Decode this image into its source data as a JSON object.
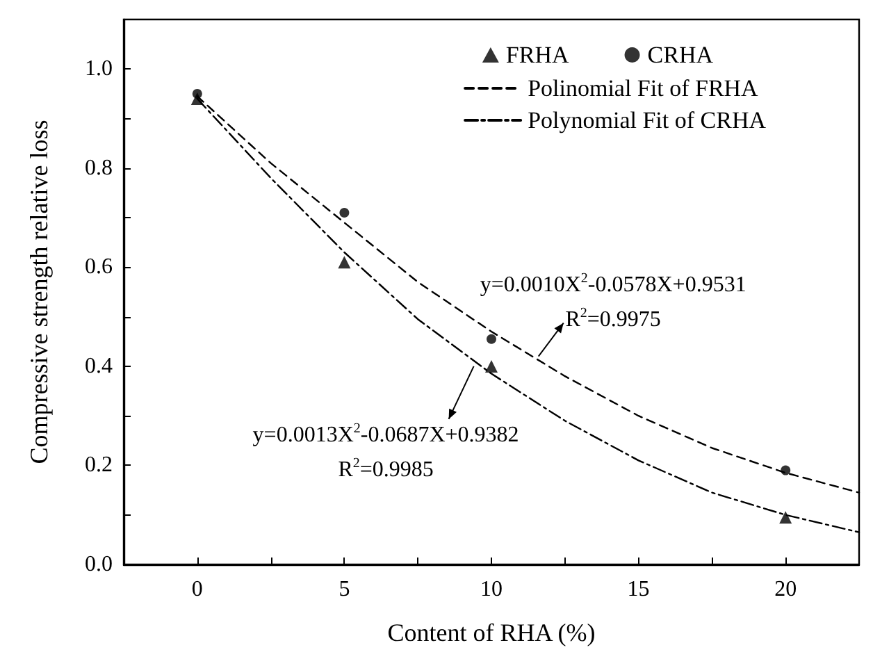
{
  "chart_data": {
    "type": "scatter",
    "xlabel": "Content of RHA (%)",
    "ylabel": "Compressive strength relative loss",
    "xlim": [
      -2.5,
      22.5
    ],
    "xticks": [
      0,
      {
        "value": 2.5,
        "label": null
      },
      5,
      {
        "value": 7.5,
        "label": null
      },
      10,
      {
        "value": 12.5,
        "label": null
      },
      15,
      {
        "value": 17.5,
        "label": null
      },
      20
    ],
    "ylim": [
      0,
      1.1
    ],
    "yticks": [
      {
        "value": 0,
        "label": "0.0"
      },
      {
        "value": 0.1,
        "label": null
      },
      {
        "value": 0.2,
        "label": "0.2"
      },
      {
        "value": 0.3,
        "label": null
      },
      {
        "value": 0.4,
        "label": "0.4"
      },
      {
        "value": 0.5,
        "label": null
      },
      {
        "value": 0.6,
        "label": "0.6"
      },
      {
        "value": 0.7,
        "label": null
      },
      {
        "value": 0.8,
        "label": "0.8"
      },
      {
        "value": 0.9,
        "label": null
      },
      {
        "value": 1.0,
        "label": "1.0"
      }
    ],
    "grid": false,
    "legend": "top right",
    "x": [
      0,
      5,
      10,
      20
    ],
    "series": [
      {
        "name": "FRHA",
        "type": "scatter",
        "marker": "triangle",
        "color": "#000000",
        "values": [
          0.94,
          0.61,
          0.4,
          0.095
        ]
      },
      {
        "name": "CRHA",
        "type": "scatter",
        "marker": "circle",
        "color": "#000000",
        "values": [
          0.95,
          0.71,
          0.455,
          0.19
        ]
      },
      {
        "name": "Polinomial Fit of FRHA",
        "type": "line",
        "marker": "none",
        "line_style": "dashed",
        "color": "#000000",
        "x": [
          0,
          2.5,
          5,
          7.5,
          10,
          12.5,
          15,
          17.5,
          20,
          22.5
        ],
        "values": [
          0.945,
          0.81,
          0.69,
          0.57,
          0.47,
          0.38,
          0.3,
          0.235,
          0.185,
          0.145
        ]
      },
      {
        "name": "Polynomial Fit of CRHA",
        "type": "line",
        "marker": "none",
        "line_style": "dashdot",
        "color": "#000000",
        "x": [
          0,
          2.5,
          5,
          7.5,
          10,
          12.5,
          15,
          17.5,
          20,
          22.5
        ],
        "values": [
          0.94,
          0.78,
          0.63,
          0.495,
          0.385,
          0.29,
          0.21,
          0.145,
          0.1,
          0.065
        ]
      }
    ],
    "annotations": [
      {
        "text": "y=0.0010X$^{2}$-0.0578X+0.9531\nR$^{2}$=0.9975",
        "x": 11.6,
        "y": 0.42
      },
      {
        "text": "y=0.0013X$^{2}$-0.0687X+0.9382\nR$^{2}$=0.9985",
        "x": 9.4,
        "y": 0.4
      }
    ]
  }
}
